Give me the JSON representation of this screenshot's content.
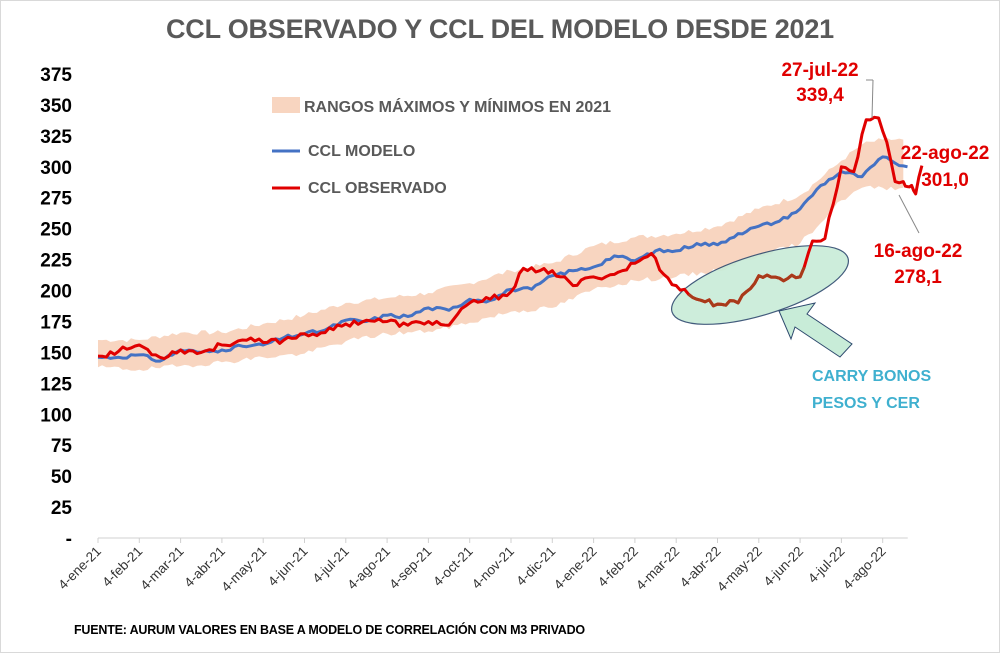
{
  "chart_data": {
    "type": "line",
    "title": "CCL OBSERVADO Y CCL DEL MODELO DESDE 2021",
    "xlabel": "",
    "ylabel": "",
    "ylim": [
      0,
      375
    ],
    "yticks": [
      0,
      25,
      50,
      75,
      100,
      125,
      150,
      175,
      200,
      225,
      250,
      275,
      300,
      325,
      350,
      375
    ],
    "ytick_labels": [
      "-",
      "25",
      "50",
      "75",
      "100",
      "125",
      "150",
      "175",
      "200",
      "225",
      "250",
      "275",
      "300",
      "325",
      "350",
      "375"
    ],
    "x_tick_labels": [
      "4-ene-21",
      "4-feb-21",
      "4-mar-21",
      "4-abr-21",
      "4-may-21",
      "4-jun-21",
      "4-jul-21",
      "4-ago-21",
      "4-sep-21",
      "4-oct-21",
      "4-nov-21",
      "4-dic-21",
      "4-ene-22",
      "4-feb-22",
      "4-mar-22",
      "4-abr-22",
      "4-may-22",
      "4-jun-22",
      "4-jul-22",
      "4-ago-22"
    ],
    "x_unit": "months since 4-ene-21",
    "grid": false,
    "legend_position": "top-left",
    "series": [
      {
        "name": "RANGOS MÁXIMOS Y MÍNIMOS EN 2021",
        "kind": "band",
        "color": "#f8d5c0",
        "x": [
          0,
          1,
          2,
          3,
          4,
          5,
          6,
          7,
          8,
          9,
          10,
          11,
          12,
          13,
          14,
          15,
          16,
          17,
          18,
          18.5,
          19,
          19.5
        ],
        "upper": [
          160,
          160,
          166,
          166,
          173,
          180,
          190,
          194,
          198,
          206,
          216,
          222,
          236,
          243,
          246,
          252,
          266,
          277,
          305,
          318,
          322,
          322
        ],
        "lower": [
          138,
          136,
          139,
          142,
          146,
          149,
          159,
          165,
          167,
          174,
          183,
          186,
          201,
          208,
          211,
          216,
          228,
          238,
          273,
          283,
          283,
          283
        ]
      },
      {
        "name": "CCL MODELO",
        "color": "#4472c4",
        "x": [
          0,
          0.5,
          1,
          1.5,
          2,
          2.5,
          3,
          3.5,
          4,
          4.5,
          5,
          5.5,
          6,
          6.5,
          7,
          7.5,
          8,
          8.5,
          9,
          9.5,
          10,
          10.5,
          11,
          11.5,
          12,
          12.5,
          13,
          13.5,
          14,
          14.5,
          15,
          15.5,
          16,
          16.5,
          17,
          17.5,
          18,
          18.5,
          19,
          19.3,
          19.6
        ],
        "y": [
          146,
          146,
          148,
          143,
          152,
          150,
          152,
          155,
          156,
          162,
          165,
          168,
          176,
          175,
          180,
          179,
          186,
          184,
          193,
          192,
          201,
          201,
          212,
          216,
          219,
          228,
          224,
          232,
          232,
          238,
          237,
          246,
          252,
          256,
          266,
          285,
          296,
          292,
          308,
          303,
          300
        ]
      },
      {
        "name": "CCL OBSERVADO",
        "color": "#e00000",
        "x": [
          0,
          0.5,
          1,
          1.5,
          2,
          2.5,
          3,
          3.5,
          4,
          4.5,
          5,
          5.5,
          6,
          6.5,
          7,
          7.5,
          8,
          8.5,
          9,
          9.5,
          10,
          10.3,
          10.6,
          11,
          11.5,
          12,
          12.5,
          13,
          13.4,
          13.7,
          14,
          14.5,
          15,
          15.5,
          16,
          16.5,
          17,
          17.3,
          17.6,
          18,
          18.3,
          18.6,
          18.9,
          19.1,
          19.3,
          19.5,
          19.6,
          19.7,
          19.8,
          19.95
        ],
        "y": [
          147,
          151,
          156,
          146,
          152,
          150,
          156,
          160,
          158,
          160,
          165,
          166,
          173,
          176,
          175,
          172,
          175,
          172,
          190,
          193,
          199,
          218,
          215,
          216,
          204,
          211,
          213,
          222,
          230,
          213,
          204,
          193,
          189,
          190,
          212,
          210,
          211,
          240,
          242,
          300,
          296,
          338,
          339.4,
          320,
          288,
          288,
          284,
          285,
          278.1,
          301
        ]
      }
    ],
    "highlight_segment": {
      "series": "CCL OBSERVADO",
      "x_from": 14.3,
      "x_to": 17.1,
      "color": "#a83a1a"
    },
    "annotations": [
      {
        "date": "27-jul-22",
        "value": "339,4",
        "x": 18.75,
        "y": 339.4
      },
      {
        "date": "22-ago-22",
        "value": "301,0",
        "x": 19.95,
        "y": 301.0
      },
      {
        "date": "16-ago-22",
        "value": "278,1",
        "x": 19.8,
        "y": 278.1
      }
    ],
    "callout": {
      "text_line1": "CARRY BONOS",
      "text_line2": "PESOS Y CER",
      "color": "#3fb0cf",
      "fill": "#c8ecd8"
    }
  },
  "source_note": "FUENTE: AURUM VALORES EN BASE A MODELO DE CORRELACIÓN CON M3 PRIVADO"
}
